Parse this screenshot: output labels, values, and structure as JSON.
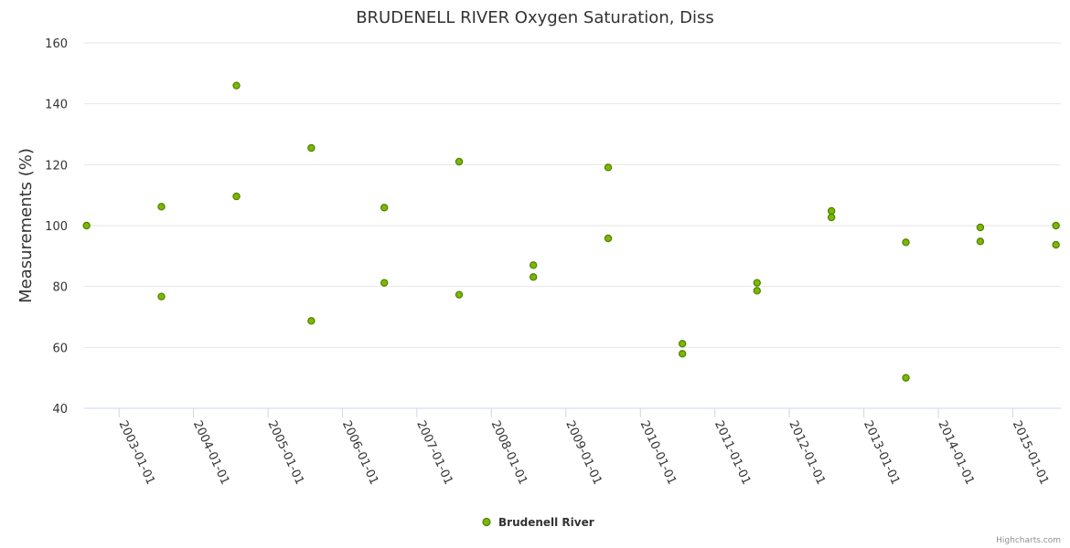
{
  "chart_data": {
    "type": "scatter",
    "title": "BRUDENELL RIVER Oxygen Saturation, Diss",
    "xlabel": "",
    "ylabel": "Measurements (%)",
    "x_axis_type": "datetime",
    "x_ticks": [
      "2003-01-01",
      "2004-01-01",
      "2005-01-01",
      "2006-01-01",
      "2007-01-01",
      "2008-01-01",
      "2009-01-01",
      "2010-01-01",
      "2011-01-01",
      "2012-01-01",
      "2013-01-01",
      "2014-01-01",
      "2015-01-01"
    ],
    "xlim": [
      "2002-07-14",
      "2015-08-25"
    ],
    "y_ticks": [
      40,
      60,
      80,
      100,
      120,
      140,
      160
    ],
    "ylim": [
      40,
      160
    ],
    "grid": true,
    "legend": {
      "position": "bottom-center"
    },
    "colors": {
      "marker_fill": "#7cb800",
      "marker_stroke": "#4f7f00",
      "grid": "#e6e6e6",
      "axis": "#ccd6eb"
    },
    "series": [
      {
        "name": "Brudenell River",
        "points": [
          {
            "x": "2002-07-26",
            "y": 100.0
          },
          {
            "x": "2003-07-28",
            "y": 106.2
          },
          {
            "x": "2003-07-28",
            "y": 76.7
          },
          {
            "x": "2004-07-30",
            "y": 146.0
          },
          {
            "x": "2004-07-30",
            "y": 109.6
          },
          {
            "x": "2005-08-01",
            "y": 125.5
          },
          {
            "x": "2005-08-01",
            "y": 68.7
          },
          {
            "x": "2006-07-25",
            "y": 105.9
          },
          {
            "x": "2006-07-25",
            "y": 81.2
          },
          {
            "x": "2007-07-27",
            "y": 121.0
          },
          {
            "x": "2007-07-27",
            "y": 77.3
          },
          {
            "x": "2008-07-25",
            "y": 87.0
          },
          {
            "x": "2008-07-25",
            "y": 83.1
          },
          {
            "x": "2009-07-27",
            "y": 119.1
          },
          {
            "x": "2009-07-27",
            "y": 95.8
          },
          {
            "x": "2010-07-26",
            "y": 61.2
          },
          {
            "x": "2010-07-26",
            "y": 57.9
          },
          {
            "x": "2011-07-27",
            "y": 81.2
          },
          {
            "x": "2011-07-27",
            "y": 78.6
          },
          {
            "x": "2012-07-26",
            "y": 104.8
          },
          {
            "x": "2012-07-26",
            "y": 102.7
          },
          {
            "x": "2013-07-26",
            "y": 94.5
          },
          {
            "x": "2013-07-26",
            "y": 50.0
          },
          {
            "x": "2014-07-26",
            "y": 99.4
          },
          {
            "x": "2014-07-26",
            "y": 94.8
          },
          {
            "x": "2015-08-01",
            "y": 100.0
          },
          {
            "x": "2015-08-01",
            "y": 93.7
          }
        ]
      }
    ]
  },
  "credits": "Highcharts.com"
}
